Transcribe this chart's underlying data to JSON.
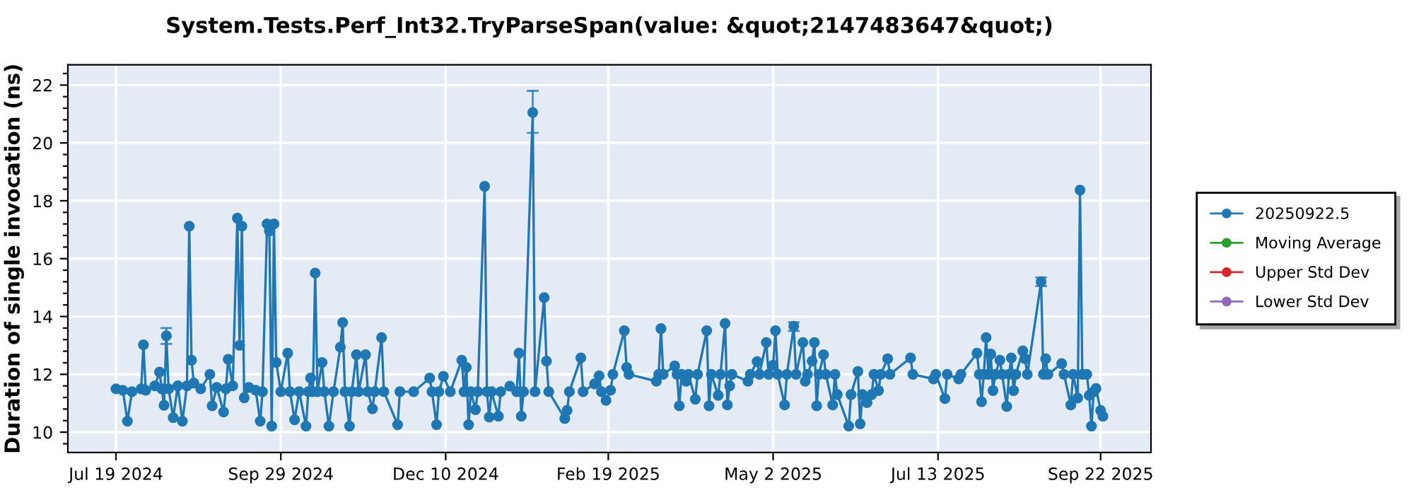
{
  "chart_data": {
    "type": "line",
    "title": "System.Tests.Perf_Int32.TryParseSpan(value: &quot;2147483647&quot;)",
    "ylabel": "Duration of single invocation (ns)",
    "xlim": [
      "2024-06-28",
      "2025-10-14"
    ],
    "xticks": [
      {
        "value": "2024-07-19",
        "label": "Jul 19 2024"
      },
      {
        "value": "2024-09-29",
        "label": "Sep 29 2024"
      },
      {
        "value": "2024-12-10",
        "label": "Dec 10 2024"
      },
      {
        "value": "2025-02-19",
        "label": "Feb 19 2025"
      },
      {
        "value": "2025-05-02",
        "label": "May 2 2025"
      },
      {
        "value": "2025-07-13",
        "label": "Jul 13 2025"
      },
      {
        "value": "2025-09-22",
        "label": "Sep 22 2025"
      }
    ],
    "ylim": [
      9.3,
      22.7
    ],
    "yticks": [
      {
        "value": 9.6,
        "label": null
      },
      10,
      {
        "value": 10.4,
        "label": null
      },
      {
        "value": 10.8,
        "label": null
      },
      {
        "value": 11.2,
        "label": null
      },
      {
        "value": 11.6,
        "label": null
      },
      12,
      {
        "value": 12.4,
        "label": null
      },
      {
        "value": 12.8,
        "label": null
      },
      {
        "value": 13.2,
        "label": null
      },
      {
        "value": 13.6,
        "label": null
      },
      14,
      {
        "value": 14.4,
        "label": null
      },
      {
        "value": 14.8,
        "label": null
      },
      {
        "value": 15.2,
        "label": null
      },
      {
        "value": 15.6,
        "label": null
      },
      16,
      {
        "value": 16.4,
        "label": null
      },
      {
        "value": 16.8,
        "label": null
      },
      {
        "value": 17.2,
        "label": null
      },
      {
        "value": 17.6,
        "label": null
      },
      18,
      {
        "value": 18.4,
        "label": null
      },
      {
        "value": 18.8,
        "label": null
      },
      {
        "value": 19.2,
        "label": null
      },
      {
        "value": 19.6,
        "label": null
      },
      20,
      {
        "value": 20.4,
        "label": null
      },
      {
        "value": 20.8,
        "label": null
      },
      {
        "value": 21.2,
        "label": null
      },
      {
        "value": 21.6,
        "label": null
      },
      22,
      {
        "value": 22.4,
        "label": null
      }
    ],
    "grid": true,
    "legend": "right",
    "marker": "circle",
    "line_style": "solid",
    "series": [
      {
        "name": "20250922.5",
        "color": "#1f77b4",
        "x": [
          "2024-07-19",
          "2024-07-22",
          "2024-07-24",
          "2024-07-26",
          "2024-07-30",
          "2024-07-31",
          "2024-08-01",
          "2024-08-05",
          "2024-08-07",
          "2024-08-08",
          "2024-08-09",
          "2024-08-10",
          "2024-08-11",
          "2024-08-13",
          "2024-08-15",
          "2024-08-17",
          "2024-08-19",
          "2024-08-20",
          "2024-08-21",
          "2024-08-22",
          "2024-08-25",
          "2024-08-29",
          "2024-08-30",
          "2024-09-01",
          "2024-09-04",
          "2024-09-05",
          "2024-09-06",
          "2024-09-08",
          "2024-09-10",
          "2024-09-11",
          "2024-09-12",
          "2024-09-13",
          "2024-09-15",
          "2024-09-18",
          "2024-09-20",
          "2024-09-21",
          "2024-09-23",
          "2024-09-24",
          "2024-09-25",
          "2024-09-26",
          "2024-09-27",
          "2024-09-29",
          "2024-10-02",
          "2024-10-03",
          "2024-10-05",
          "2024-10-07",
          "2024-10-10",
          "2024-10-11",
          "2024-10-12",
          "2024-10-13",
          "2024-10-14",
          "2024-10-15",
          "2024-10-17",
          "2024-10-18",
          "2024-10-20",
          "2024-10-22",
          "2024-10-25",
          "2024-10-26",
          "2024-10-27",
          "2024-10-29",
          "2024-10-30",
          "2024-11-01",
          "2024-11-02",
          "2024-11-05",
          "2024-11-06",
          "2024-11-08",
          "2024-11-09",
          "2024-11-12",
          "2024-11-13",
          "2024-11-19",
          "2024-11-20",
          "2024-11-26",
          "2024-12-03",
          "2024-12-04",
          "2024-12-06",
          "2024-12-07",
          "2024-12-09",
          "2024-12-12",
          "2024-12-17",
          "2024-12-18",
          "2024-12-19",
          "2024-12-20",
          "2024-12-21",
          "2024-12-23",
          "2024-12-24",
          "2024-12-27",
          "2024-12-28",
          "2024-12-29",
          "2024-12-30",
          "2025-01-02",
          "2025-01-03",
          "2025-01-07",
          "2025-01-10",
          "2025-01-11",
          "2025-01-12",
          "2025-01-13",
          "2025-01-17",
          "2025-01-18",
          "2025-01-22",
          "2025-01-23",
          "2025-01-24",
          "2025-01-31",
          "2025-02-01",
          "2025-02-02",
          "2025-02-07",
          "2025-02-08",
          "2025-02-13",
          "2025-02-15",
          "2025-02-16",
          "2025-02-18",
          "2025-02-20",
          "2025-02-21",
          "2025-02-26",
          "2025-02-27",
          "2025-02-28",
          "2025-03-12",
          "2025-03-13",
          "2025-03-14",
          "2025-03-15",
          "2025-03-20",
          "2025-03-21",
          "2025-03-22",
          "2025-03-23",
          "2025-03-25",
          "2025-03-26",
          "2025-03-29",
          "2025-03-30",
          "2025-04-03",
          "2025-04-04",
          "2025-04-05",
          "2025-04-08",
          "2025-04-09",
          "2025-04-11",
          "2025-04-12",
          "2025-04-13",
          "2025-04-14",
          "2025-04-21",
          "2025-04-22",
          "2025-04-25",
          "2025-04-26",
          "2025-04-29",
          "2025-04-30",
          "2025-05-02",
          "2025-05-03",
          "2025-05-04",
          "2025-05-07",
          "2025-05-08",
          "2025-05-11",
          "2025-05-12",
          "2025-05-15",
          "2025-05-16",
          "2025-05-17",
          "2025-05-19",
          "2025-05-20",
          "2025-05-21",
          "2025-05-22",
          "2025-05-24",
          "2025-05-25",
          "2025-05-28",
          "2025-05-29",
          "2025-05-30",
          "2025-06-04",
          "2025-06-05",
          "2025-06-08",
          "2025-06-09",
          "2025-06-10",
          "2025-06-12",
          "2025-06-14",
          "2025-06-15",
          "2025-06-17",
          "2025-06-18",
          "2025-06-21",
          "2025-06-22",
          "2025-07-01",
          "2025-07-02",
          "2025-07-11",
          "2025-07-12",
          "2025-07-16",
          "2025-07-17",
          "2025-07-22",
          "2025-07-23",
          "2025-07-30",
          "2025-07-31",
          "2025-08-01",
          "2025-08-02",
          "2025-08-03",
          "2025-08-04",
          "2025-08-05",
          "2025-08-06",
          "2025-08-07",
          "2025-08-09",
          "2025-08-10",
          "2025-08-12",
          "2025-08-13",
          "2025-08-14",
          "2025-08-15",
          "2025-08-16",
          "2025-08-19",
          "2025-08-20",
          "2025-08-21",
          "2025-08-27",
          "2025-08-28",
          "2025-08-29",
          "2025-08-30",
          "2025-09-05",
          "2025-09-06",
          "2025-09-09",
          "2025-09-10",
          "2025-09-12",
          "2025-09-13",
          "2025-09-14",
          "2025-09-16",
          "2025-09-17",
          "2025-09-18",
          "2025-09-19",
          "2025-09-20",
          "2025-09-22",
          "2025-09-23"
        ],
        "values": [
          11.5,
          11.45,
          10.38,
          11.4,
          11.5,
          13.02,
          11.45,
          11.6,
          12.08,
          11.5,
          10.93,
          13.33,
          11.5,
          10.5,
          11.6,
          10.38,
          11.6,
          17.12,
          12.49,
          11.7,
          11.5,
          12.0,
          10.91,
          11.55,
          10.7,
          11.5,
          12.52,
          11.6,
          17.4,
          13.0,
          17.12,
          11.19,
          11.55,
          11.45,
          10.38,
          11.4,
          17.2,
          16.96,
          10.21,
          17.2,
          12.41,
          11.4,
          12.73,
          11.4,
          10.43,
          11.4,
          10.21,
          11.4,
          11.87,
          11.4,
          15.5,
          11.4,
          12.41,
          11.4,
          10.21,
          11.4,
          12.94,
          13.79,
          11.4,
          10.21,
          11.4,
          12.68,
          11.4,
          12.68,
          11.4,
          10.81,
          11.4,
          13.27,
          11.4,
          10.26,
          11.4,
          11.4,
          11.87,
          11.4,
          10.26,
          11.4,
          11.93,
          11.4,
          12.49,
          11.4,
          12.24,
          10.26,
          11.4,
          10.78,
          11.4,
          18.5,
          11.4,
          10.52,
          11.4,
          10.55,
          11.4,
          11.59,
          11.4,
          12.73,
          10.55,
          11.4,
          21.05,
          11.4,
          14.65,
          12.46,
          11.4,
          10.47,
          10.75,
          11.4,
          12.57,
          11.4,
          11.67,
          11.95,
          11.4,
          11.1,
          11.45,
          12.0,
          13.51,
          12.24,
          12.0,
          11.76,
          12.0,
          13.58,
          12.0,
          12.29,
          12.0,
          10.91,
          12.0,
          11.76,
          12.0,
          11.14,
          12.0,
          13.51,
          10.91,
          12.0,
          11.27,
          12.0,
          13.76,
          10.94,
          11.6,
          12.0,
          11.76,
          12.0,
          12.44,
          12.0,
          13.1,
          12.0,
          12.32,
          13.51,
          12.0,
          10.94,
          12.0,
          13.66,
          12.0,
          13.1,
          11.76,
          12.0,
          12.46,
          13.1,
          10.91,
          12.0,
          12.68,
          12.0,
          10.94,
          12.0,
          11.3,
          10.21,
          11.3,
          12.1,
          10.29,
          11.3,
          11.02,
          11.3,
          12.0,
          11.44,
          12.0,
          12.54,
          12.0,
          12.57,
          12.0,
          11.84,
          12.0,
          11.16,
          12.0,
          11.84,
          12.0,
          12.73,
          12.0,
          11.05,
          12.0,
          13.27,
          12.0,
          12.7,
          11.44,
          12.0,
          12.49,
          12.0,
          10.89,
          12.0,
          12.57,
          11.44,
          12.0,
          12.81,
          12.54,
          12.0,
          15.2,
          12.0,
          12.54,
          12.0,
          12.37,
          12.0,
          10.94,
          12.0,
          11.18,
          18.37,
          12.0,
          12.0,
          11.27,
          10.21,
          11.4,
          11.51,
          10.75,
          10.55
        ],
        "errors": [
          null,
          null,
          null,
          null,
          null,
          null,
          null,
          null,
          null,
          null,
          null,
          [
            13.05,
            13.6
          ],
          null,
          null,
          null,
          null,
          null,
          null,
          null,
          null,
          null,
          null,
          null,
          null,
          null,
          null,
          null,
          null,
          null,
          null,
          null,
          null,
          null,
          null,
          null,
          null,
          null,
          null,
          null,
          null,
          null,
          null,
          null,
          null,
          null,
          null,
          null,
          null,
          null,
          null,
          null,
          null,
          null,
          null,
          null,
          null,
          null,
          null,
          null,
          null,
          null,
          null,
          null,
          null,
          null,
          null,
          null,
          null,
          null,
          null,
          null,
          null,
          null,
          null,
          null,
          null,
          null,
          null,
          null,
          null,
          null,
          null,
          null,
          null,
          null,
          null,
          null,
          null,
          null,
          null,
          null,
          null,
          null,
          null,
          null,
          null,
          [
            20.35,
            21.8
          ],
          null,
          null,
          null,
          null,
          null,
          null,
          null,
          null,
          null,
          null,
          null,
          null,
          null,
          null,
          null,
          null,
          null,
          null,
          null,
          null,
          null,
          null,
          null,
          null,
          null,
          null,
          null,
          null,
          null,
          null,
          null,
          null,
          null,
          null,
          null,
          null,
          null,
          null,
          null,
          null,
          null,
          null,
          null,
          null,
          null,
          null,
          null,
          null,
          null,
          null,
          [
            13.5,
            13.8
          ],
          null,
          null,
          null,
          null,
          null,
          null,
          null,
          null,
          null,
          null,
          null,
          null,
          null,
          null,
          null,
          null,
          null,
          null,
          null,
          null,
          null,
          null,
          null,
          null,
          null,
          null,
          null,
          null,
          null,
          null,
          null,
          null,
          null,
          null,
          null,
          null,
          null,
          null,
          null,
          null,
          null,
          null,
          null,
          null,
          null,
          null,
          null,
          null,
          null,
          null,
          null,
          null,
          [
            15.05,
            15.35
          ],
          null,
          null,
          null,
          null,
          null,
          null,
          null,
          null,
          null,
          null,
          null,
          null,
          null,
          null,
          null,
          null,
          null
        ]
      },
      {
        "name": "Moving Average",
        "color": "#2ca02c"
      },
      {
        "name": "Upper Std Dev",
        "color": "#d62728"
      },
      {
        "name": "Lower Std Dev",
        "color": "#9467bd"
      }
    ]
  }
}
